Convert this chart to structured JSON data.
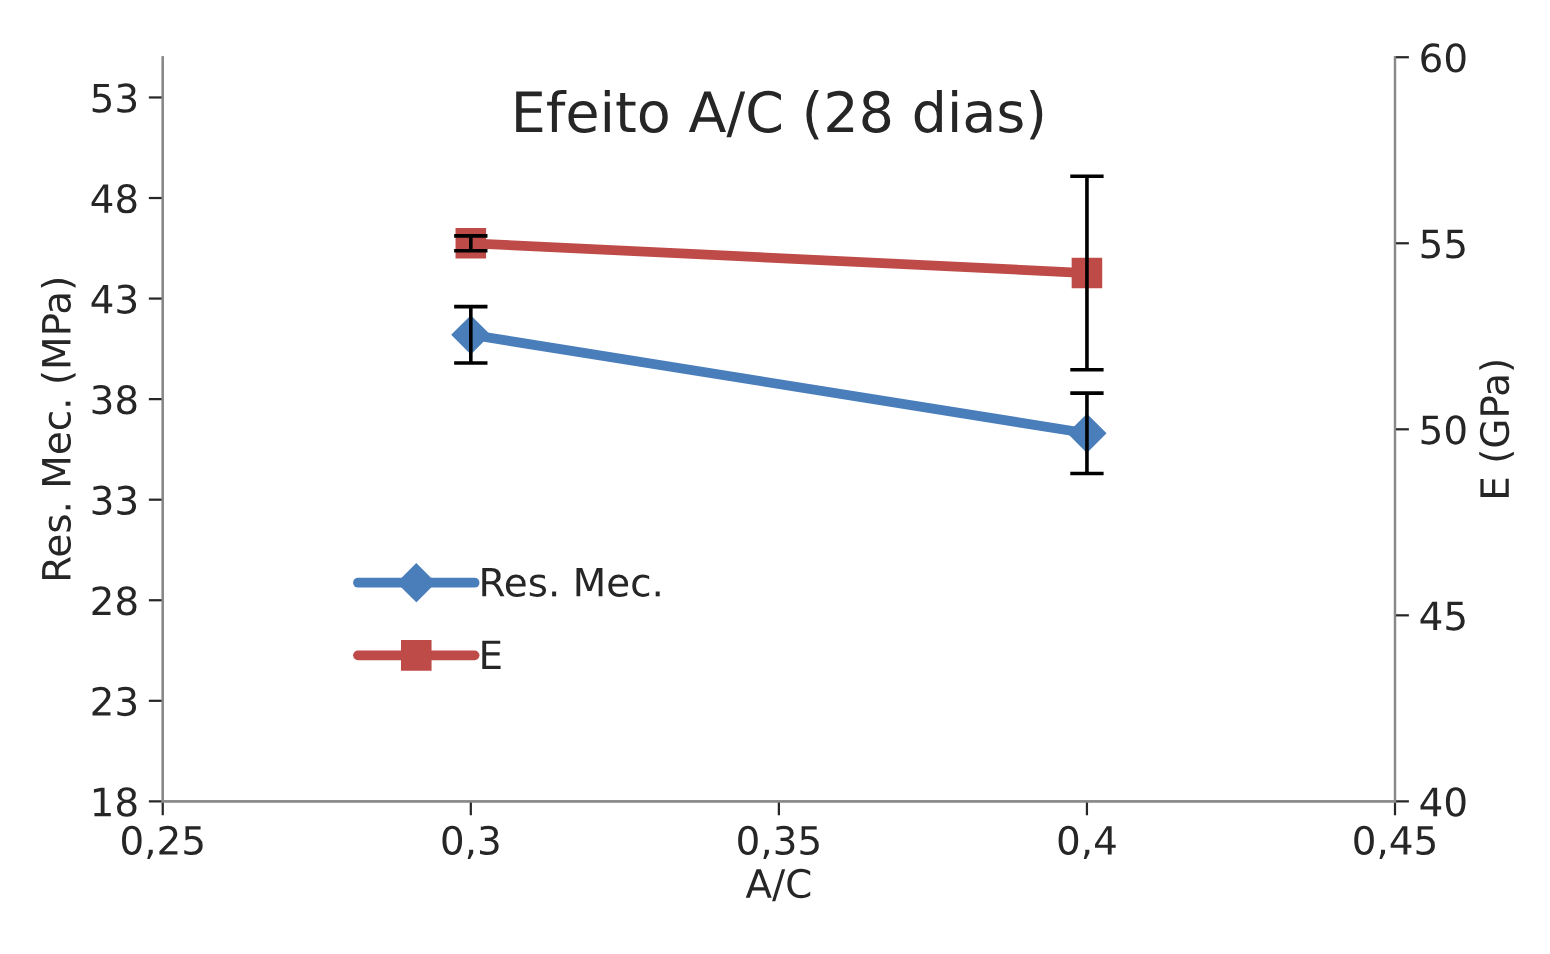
{
  "chart_data": {
    "type": "line",
    "title": "Efeito A/C (28 dias)",
    "xlabel": "A/C",
    "ylabel": "Res. Mec. (MPa)",
    "y2label": "E (GPa)",
    "x": [
      0.3,
      0.4
    ],
    "series": [
      {
        "name": "Res. Mec.",
        "color": "#4a7ebb",
        "values": [
          41.2,
          36.3
        ],
        "errors": [
          1.4,
          2.0
        ],
        "marker": "diamond"
      },
      {
        "name": "E",
        "color": "#be4b48",
        "values": [
          55.0,
          54.2
        ],
        "errors": [
          0.2,
          2.6
        ],
        "marker": "square",
        "axis": "y2"
      }
    ],
    "xlim": [
      0.25,
      0.45
    ],
    "xticks": [
      {
        "value": 0.25,
        "label": "0,25"
      },
      {
        "value": 0.3,
        "label": "0,3"
      },
      {
        "value": 0.35,
        "label": "0,35"
      },
      {
        "value": 0.4,
        "label": "0,4"
      },
      {
        "value": 0.45,
        "label": "0,45"
      }
    ],
    "ylim": [
      18,
      55
    ],
    "yticks": [
      18,
      23,
      28,
      33,
      38,
      43,
      48,
      53
    ],
    "y2lim": [
      40,
      60
    ],
    "y2ticks": [
      40,
      45,
      50,
      55,
      60
    ],
    "grid": false,
    "legend": "bottom left",
    "line_style": "solid"
  }
}
